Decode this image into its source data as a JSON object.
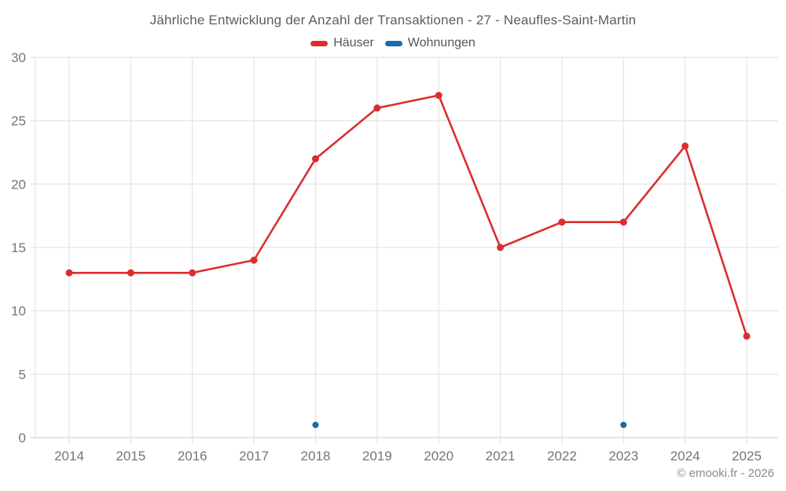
{
  "title": "Jährliche Entwicklung der Anzahl der Transaktionen - 27 - Neaufles-Saint-Martin",
  "footer": {
    "copyright": "© emooki.fr - 2026"
  },
  "colors": {
    "haeuser": "#da2f2f",
    "wohnungen": "#1a6ca8",
    "grid": "#e8e8e8",
    "axis_line": "#dcdcdc",
    "tick_text": "#757575"
  },
  "chart_data": {
    "type": "line",
    "title": "Jährliche Entwicklung der Anzahl der Transaktionen - 27 - Neaufles-Saint-Martin",
    "x": [
      2014,
      2015,
      2016,
      2017,
      2018,
      2019,
      2020,
      2021,
      2022,
      2023,
      2024,
      2025
    ],
    "series": [
      {
        "name": "Häuser",
        "color": "#da2f2f",
        "style": "line+points",
        "values": [
          13,
          13,
          13,
          14,
          22,
          26,
          27,
          15,
          17,
          17,
          23,
          8
        ]
      },
      {
        "name": "Wohnungen",
        "color": "#1a6ca8",
        "style": "points",
        "values": [
          null,
          null,
          null,
          null,
          1,
          null,
          null,
          null,
          null,
          1,
          null,
          null
        ]
      }
    ],
    "xlabel": "",
    "ylabel": "",
    "ylim": [
      0,
      30
    ],
    "yticks": [
      0,
      5,
      10,
      15,
      20,
      25,
      30
    ],
    "grid": true,
    "legend_position": "top"
  }
}
